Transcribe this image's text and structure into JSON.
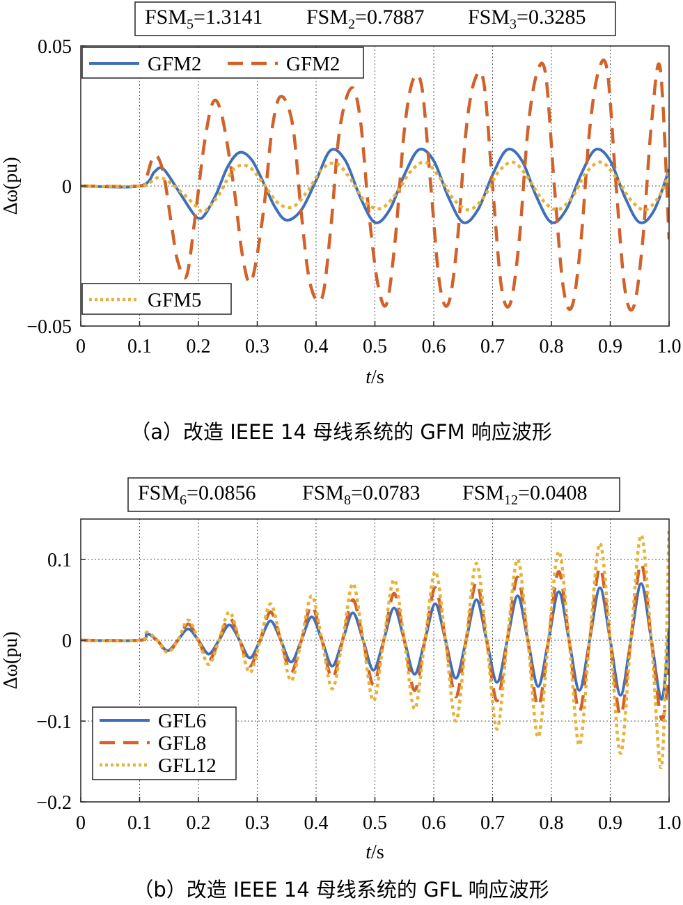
{
  "chart_data": [
    {
      "type": "line",
      "caption": "（a）改造 IEEE 14 母线系统的 GFM 响应波形",
      "fsm_parts": [
        {
          "base": "FSM",
          "sub": "5",
          "val": "=1.3141"
        },
        {
          "base": "FSM",
          "sub": "2",
          "val": "=0.7887"
        },
        {
          "base": "FSM",
          "sub": "3",
          "val": "=0.3285"
        }
      ],
      "xlabel_italic": "t",
      "xlabel_rest": "/s",
      "ylabel": "Δω(pu)",
      "xlim": [
        0,
        1.0
      ],
      "ylim": [
        -0.05,
        0.05
      ],
      "xticks": [
        0,
        0.1,
        0.2,
        0.3,
        0.4,
        0.5,
        0.6,
        0.7,
        0.8,
        0.9,
        1.0
      ],
      "xtick_labels": [
        "0",
        "0.1",
        "0.2",
        "0.3",
        "0.4",
        "0.5",
        "0.6",
        "0.7",
        "0.8",
        "0.9",
        "1.0"
      ],
      "yticks": [
        -0.05,
        0,
        0.05
      ],
      "ytick_labels": [
        "−0.05",
        "0",
        "0.05"
      ],
      "grid": "dotted",
      "legends": [
        {
          "placement": "top-left",
          "entries": [
            "GFM2",
            "GFM2"
          ]
        },
        {
          "placement": "bottom-left",
          "entries": [
            "GFM5"
          ]
        }
      ],
      "series": [
        {
          "name": "GFM2",
          "color": "#3f6fba",
          "style": "solid",
          "x": [
            0,
            0.1,
            0.125,
            0.135,
            0.145,
            0.17,
            0.19,
            0.2,
            0.21,
            0.23,
            0.25,
            0.27,
            0.29,
            0.31,
            0.33,
            0.35,
            0.375,
            0.4,
            0.425,
            0.45,
            0.475,
            0.5,
            0.525,
            0.55,
            0.575,
            0.6,
            0.625,
            0.65,
            0.675,
            0.7,
            0.725,
            0.75,
            0.775,
            0.8,
            0.825,
            0.85,
            0.875,
            0.9,
            0.925,
            0.95,
            0.975,
            1.0
          ],
          "y": [
            0,
            0,
            0.005,
            0.0065,
            0.005,
            -0.003,
            -0.0095,
            -0.0115,
            -0.0105,
            -0.003,
            0.007,
            0.012,
            0.0095,
            0.0015,
            -0.0075,
            -0.0122,
            -0.0085,
            0.002,
            0.0128,
            0.009,
            -0.004,
            -0.013,
            -0.0085,
            0.004,
            0.013,
            0.009,
            -0.004,
            -0.013,
            -0.0085,
            0.004,
            0.013,
            0.009,
            -0.004,
            -0.013,
            -0.0085,
            0.004,
            0.013,
            0.009,
            -0.004,
            -0.013,
            -0.0085,
            0.006
          ]
        },
        {
          "name": "GFM2",
          "color": "#d0622a",
          "style": "dashed",
          "x": [
            0,
            0.1,
            0.11,
            0.125,
            0.14,
            0.155,
            0.165,
            0.18,
            0.195,
            0.21,
            0.225,
            0.24,
            0.26,
            0.275,
            0.29,
            0.31,
            0.325,
            0.34,
            0.36,
            0.375,
            0.39,
            0.41,
            0.425,
            0.44,
            0.46,
            0.475,
            0.49,
            0.505,
            0.52,
            0.535,
            0.55,
            0.565,
            0.58,
            0.595,
            0.61,
            0.625,
            0.64,
            0.655,
            0.67,
            0.685,
            0.7,
            0.715,
            0.73,
            0.745,
            0.76,
            0.775,
            0.79,
            0.805,
            0.82,
            0.835,
            0.85,
            0.865,
            0.88,
            0.895,
            0.91,
            0.925,
            0.94,
            0.955,
            0.97,
            0.985,
            1.0
          ],
          "y": [
            0,
            0,
            0.002,
            0.011,
            0.005,
            -0.015,
            -0.027,
            -0.032,
            -0.01,
            0.015,
            0.03,
            0.025,
            0.0,
            -0.025,
            -0.034,
            -0.01,
            0.02,
            0.032,
            0.022,
            -0.01,
            -0.035,
            -0.04,
            -0.015,
            0.02,
            0.035,
            0.024,
            -0.01,
            -0.035,
            -0.042,
            -0.018,
            0.02,
            0.038,
            0.035,
            0.0,
            -0.035,
            -0.042,
            -0.02,
            0.02,
            0.038,
            0.037,
            0.0,
            -0.036,
            -0.042,
            -0.02,
            0.02,
            0.04,
            0.04,
            0.0,
            -0.036,
            -0.043,
            -0.02,
            0.02,
            0.041,
            0.041,
            0.0,
            -0.037,
            -0.043,
            -0.02,
            0.022,
            0.042,
            -0.019
          ]
        },
        {
          "name": "GFM5",
          "color": "#e6b23a",
          "style": "dotted",
          "x": [
            0,
            0.1,
            0.135,
            0.17,
            0.195,
            0.21,
            0.235,
            0.26,
            0.285,
            0.31,
            0.335,
            0.36,
            0.385,
            0.41,
            0.435,
            0.46,
            0.485,
            0.51,
            0.535,
            0.56,
            0.585,
            0.61,
            0.635,
            0.66,
            0.685,
            0.71,
            0.735,
            0.76,
            0.785,
            0.81,
            0.835,
            0.86,
            0.885,
            0.91,
            0.935,
            0.96,
            0.985,
            1.0
          ],
          "y": [
            0,
            0,
            0.003,
            -0.002,
            -0.007,
            -0.009,
            -0.003,
            0.006,
            0.007,
            0.001,
            -0.006,
            -0.0075,
            -0.002,
            0.006,
            0.008,
            0.002,
            -0.006,
            -0.008,
            -0.003,
            0.005,
            0.0085,
            0.003,
            -0.005,
            -0.0085,
            -0.004,
            0.005,
            0.0085,
            0.003,
            -0.005,
            -0.0085,
            -0.004,
            0.005,
            0.0085,
            0.003,
            -0.005,
            -0.0085,
            -0.003,
            0.005
          ]
        }
      ]
    },
    {
      "type": "line",
      "caption": "（b）改造 IEEE 14 母线系统的 GFL 响应波形",
      "fsm_parts": [
        {
          "base": "FSM",
          "sub": "6",
          "val": "=0.0856"
        },
        {
          "base": "FSM",
          "sub": "8",
          "val": "=0.0783"
        },
        {
          "base": "FSM",
          "sub": "12",
          "val": "=0.0408"
        }
      ],
      "xlabel_italic": "t",
      "xlabel_rest": "/s",
      "ylabel": "Δω(pu)",
      "xlim": [
        0,
        1.0
      ],
      "ylim": [
        -0.2,
        0.15
      ],
      "xticks": [
        0,
        0.1,
        0.2,
        0.3,
        0.4,
        0.5,
        0.6,
        0.7,
        0.8,
        0.9,
        1.0
      ],
      "xtick_labels": [
        "0",
        "0.1",
        "0.2",
        "0.3",
        "0.4",
        "0.5",
        "0.6",
        "0.7",
        "0.8",
        "0.9",
        "1.0"
      ],
      "yticks": [
        -0.2,
        -0.1,
        0,
        0.1
      ],
      "ytick_labels": [
        "−0.2",
        "−0.1",
        "0",
        "0.1"
      ],
      "grid": "dotted",
      "legends": [
        {
          "placement": "bottom-left",
          "entries": [
            "GFL6",
            "GFL8",
            "GFL12"
          ]
        }
      ],
      "series": [
        {
          "name": "GFL6",
          "color": "#3f6fba",
          "style": "solid",
          "x": [
            0,
            0.1,
            0.1125,
            0.13,
            0.1475,
            0.165,
            0.1825,
            0.2,
            0.2175,
            0.235,
            0.2525,
            0.27,
            0.2875,
            0.305,
            0.3225,
            0.34,
            0.3575,
            0.375,
            0.3925,
            0.41,
            0.4275,
            0.445,
            0.4625,
            0.48,
            0.4975,
            0.515,
            0.5325,
            0.55,
            0.5675,
            0.585,
            0.6025,
            0.62,
            0.6375,
            0.655,
            0.6725,
            0.69,
            0.7075,
            0.725,
            0.7425,
            0.76,
            0.7775,
            0.795,
            0.8125,
            0.83,
            0.8475,
            0.865,
            0.8825,
            0.9,
            0.9175,
            0.935,
            0.9525,
            0.97,
            0.9875,
            1.0
          ],
          "y": [
            0,
            0,
            0.008,
            0.0,
            -0.013,
            0.0,
            0.014,
            0.0,
            -0.017,
            0.0,
            0.019,
            0.0,
            -0.022,
            0.0,
            0.024,
            0.0,
            -0.027,
            0.0,
            0.029,
            0.0,
            -0.032,
            0.0,
            0.034,
            0.0,
            -0.037,
            0.0,
            0.04,
            0.0,
            -0.042,
            0.0,
            0.045,
            0.0,
            -0.047,
            0.0,
            0.05,
            0.0,
            -0.052,
            0.0,
            0.055,
            0.0,
            -0.057,
            0.0,
            0.06,
            0.0,
            -0.062,
            0.0,
            0.065,
            0.0,
            -0.068,
            0.0,
            0.07,
            0.0,
            -0.073,
            0.015
          ]
        },
        {
          "name": "GFL8",
          "color": "#d0622a",
          "style": "dashed",
          "x": [
            0,
            0.1,
            0.1125,
            0.13,
            0.1475,
            0.165,
            0.1825,
            0.2,
            0.2175,
            0.235,
            0.2525,
            0.27,
            0.2875,
            0.305,
            0.3225,
            0.34,
            0.3575,
            0.375,
            0.3925,
            0.41,
            0.4275,
            0.445,
            0.4625,
            0.48,
            0.4975,
            0.515,
            0.5325,
            0.55,
            0.5675,
            0.585,
            0.6025,
            0.62,
            0.6375,
            0.655,
            0.6725,
            0.69,
            0.7075,
            0.725,
            0.7425,
            0.76,
            0.7775,
            0.795,
            0.8125,
            0.83,
            0.8475,
            0.865,
            0.8825,
            0.9,
            0.9175,
            0.935,
            0.9525,
            0.97,
            0.9875,
            1.0
          ],
          "y": [
            0,
            0,
            0.005,
            0.0,
            -0.015,
            0.0,
            0.02,
            0.0,
            -0.025,
            0.0,
            0.028,
            0.0,
            -0.032,
            0.0,
            0.035,
            0.0,
            -0.04,
            0.0,
            0.043,
            0.0,
            -0.047,
            0.0,
            0.05,
            0.0,
            -0.055,
            0.0,
            0.058,
            0.0,
            -0.062,
            0.0,
            0.065,
            0.0,
            -0.07,
            0.0,
            0.072,
            0.0,
            -0.075,
            0.0,
            0.078,
            0.0,
            -0.082,
            0.0,
            0.085,
            0.0,
            -0.088,
            0.0,
            0.09,
            0.0,
            -0.093,
            0.0,
            0.095,
            0.0,
            -0.098,
            -0.035
          ]
        },
        {
          "name": "GFL12",
          "color": "#e6b23a",
          "style": "dotted",
          "x": [
            0,
            0.1,
            0.1125,
            0.13,
            0.1475,
            0.165,
            0.1825,
            0.2,
            0.2175,
            0.235,
            0.2525,
            0.27,
            0.2875,
            0.305,
            0.3225,
            0.34,
            0.3575,
            0.375,
            0.3925,
            0.41,
            0.4275,
            0.445,
            0.4625,
            0.48,
            0.4975,
            0.515,
            0.5325,
            0.55,
            0.5675,
            0.585,
            0.6025,
            0.62,
            0.6375,
            0.655,
            0.6725,
            0.69,
            0.7075,
            0.725,
            0.7425,
            0.76,
            0.7775,
            0.795,
            0.8125,
            0.83,
            0.8475,
            0.865,
            0.8825,
            0.9,
            0.9175,
            0.935,
            0.9525,
            0.97,
            0.9875,
            1.0
          ],
          "y": [
            0,
            0,
            0.01,
            0.0,
            -0.015,
            0.0,
            0.025,
            0.0,
            -0.03,
            0.0,
            0.035,
            0.0,
            -0.04,
            0.0,
            0.045,
            0.0,
            -0.05,
            0.0,
            0.055,
            0.0,
            -0.06,
            0.0,
            0.07,
            0.0,
            -0.075,
            0.0,
            0.075,
            0.0,
            -0.085,
            0.0,
            0.085,
            0.0,
            -0.1,
            0.0,
            0.095,
            0.0,
            -0.11,
            0.0,
            0.1,
            0.0,
            -0.12,
            0.0,
            0.11,
            0.0,
            -0.13,
            0.0,
            0.12,
            0.0,
            -0.14,
            0.0,
            0.13,
            0.0,
            -0.155,
            0.14
          ]
        }
      ]
    }
  ]
}
